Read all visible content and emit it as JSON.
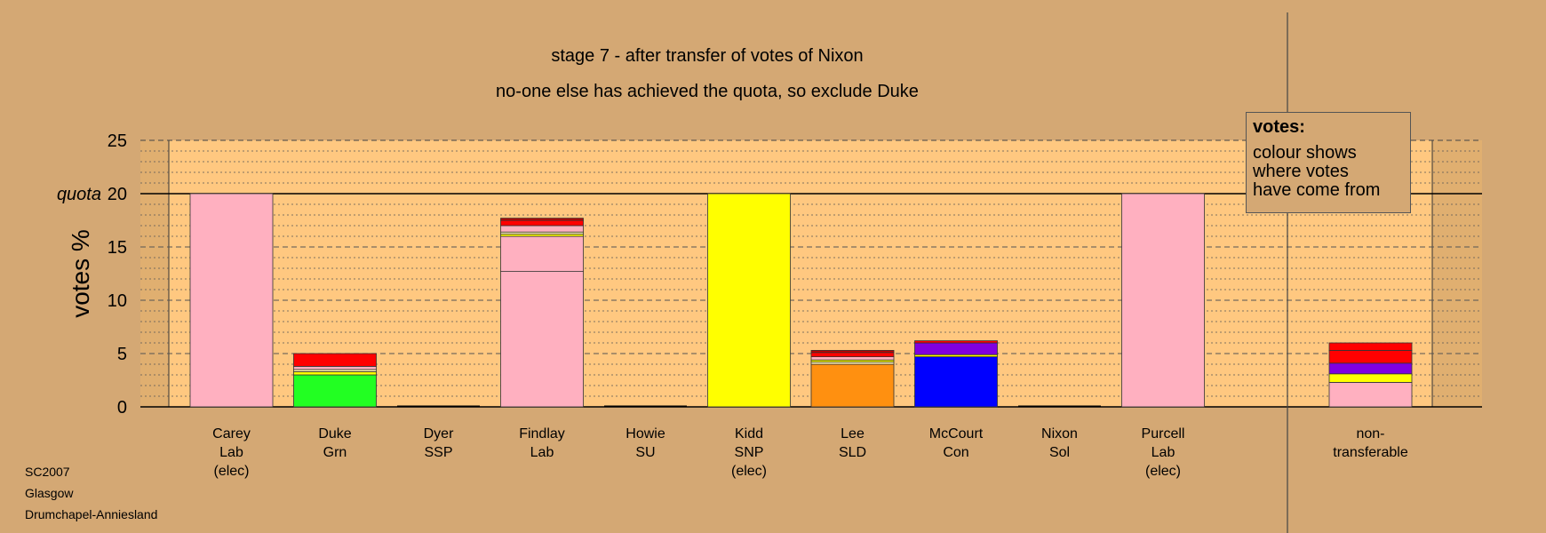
{
  "title": "stage 7 - after transfer of votes of Nixon",
  "subtitle": "no-one else has achieved the quota, so exclude Duke",
  "legend": {
    "heading": "votes:",
    "lines": [
      "colour shows",
      "where votes",
      "have come from"
    ]
  },
  "footer": [
    "SC2007",
    "Glasgow",
    "Drumchapel-Anniesland"
  ],
  "colors": {
    "background": "#D4A874",
    "plot_area": "#FFC880",
    "pink": "#FFB0C0",
    "red": "#FF0000",
    "darkred": "#C00000",
    "yellow": "#FFFF00",
    "green": "#22FF22",
    "orange": "#FF9010",
    "blue": "#0000FF",
    "purple": "#8000E0",
    "cream": "#FFF0B0",
    "white": "#FFFFFF"
  },
  "chart_data": {
    "type": "bar",
    "stacked": true,
    "ylabel": "votes %",
    "ylim": [
      0,
      25
    ],
    "yticks": [
      "0",
      "5",
      "10",
      "15",
      "20",
      "25"
    ],
    "quota_label": "quota",
    "quota": 20,
    "grid": true,
    "categories": [
      {
        "lines": [
          "Carey",
          "Lab",
          "(elec)"
        ],
        "segments": [
          {
            "color": "pink",
            "value": 20
          }
        ]
      },
      {
        "lines": [
          "Duke",
          "Grn"
        ],
        "segments": [
          {
            "color": "green",
            "value": 3.0
          },
          {
            "color": "yellow",
            "value": 0.3
          },
          {
            "color": "cream",
            "value": 0.2
          },
          {
            "color": "pink",
            "value": 0.3
          },
          {
            "color": "red",
            "value": 1.2
          }
        ]
      },
      {
        "lines": [
          "Dyer",
          "SSP"
        ],
        "segments": []
      },
      {
        "lines": [
          "Findlay",
          "Lab"
        ],
        "segments": [
          {
            "color": "pink",
            "value": 12.7
          },
          {
            "color": "pink",
            "value": 3.3
          },
          {
            "color": "yellow",
            "value": 0.2
          },
          {
            "color": "cream",
            "value": 0.2
          },
          {
            "color": "pink",
            "value": 0.6
          },
          {
            "color": "red",
            "value": 0.5
          },
          {
            "color": "darkred",
            "value": 0.2
          }
        ]
      },
      {
        "lines": [
          "Howie",
          "SU"
        ],
        "segments": []
      },
      {
        "lines": [
          "Kidd",
          "SNP",
          "(elec)"
        ],
        "segments": [
          {
            "color": "yellow",
            "value": 20
          }
        ]
      },
      {
        "lines": [
          "Lee",
          "SLD"
        ],
        "segments": [
          {
            "color": "orange",
            "value": 4.0
          },
          {
            "color": "cream",
            "value": 0.2
          },
          {
            "color": "yellow",
            "value": 0.2
          },
          {
            "color": "pink",
            "value": 0.3
          },
          {
            "color": "red",
            "value": 0.4
          },
          {
            "color": "darkred",
            "value": 0.2
          }
        ]
      },
      {
        "lines": [
          "McCourt",
          "Con"
        ],
        "segments": [
          {
            "color": "blue",
            "value": 4.7
          },
          {
            "color": "yellow",
            "value": 0.2
          },
          {
            "color": "purple",
            "value": 1.1
          },
          {
            "color": "red",
            "value": 0.2
          }
        ]
      },
      {
        "lines": [
          "Nixon",
          "Sol"
        ],
        "segments": []
      },
      {
        "lines": [
          "Purcell",
          "Lab",
          "(elec)"
        ],
        "segments": [
          {
            "color": "pink",
            "value": 20
          }
        ]
      },
      {
        "lines": [
          "non-",
          "transferable"
        ],
        "segments": [
          {
            "color": "pink",
            "value": 2.3
          },
          {
            "color": "yellow",
            "value": 0.8
          },
          {
            "color": "purple",
            "value": 1.0
          },
          {
            "color": "red",
            "value": 1.2
          },
          {
            "color": "red",
            "value": 0.7
          }
        ]
      }
    ]
  }
}
